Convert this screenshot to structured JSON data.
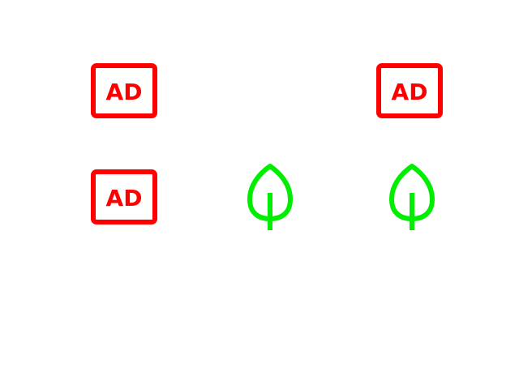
{
  "icons": {
    "ad_label": "AD",
    "ad_color": "#ff0000",
    "leaf_color": "#00ee00"
  }
}
